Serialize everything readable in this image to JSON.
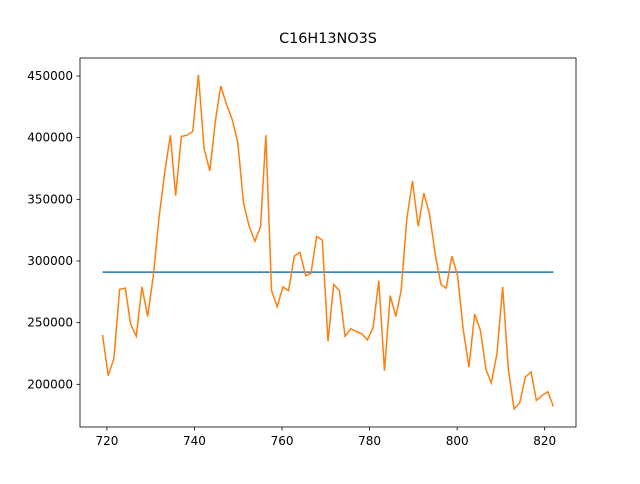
{
  "chart_data": {
    "type": "line",
    "title": "C16H13NO3S",
    "xlim": [
      713.85,
      827.15
    ],
    "xticks": [
      720,
      740,
      760,
      780,
      800,
      820
    ],
    "ylim": [
      165400,
      464600
    ],
    "yticks": [
      200000,
      250000,
      300000,
      350000,
      400000,
      450000
    ],
    "series": [
      {
        "color": "#1f77b4",
        "x": [
          719.0,
          822.0
        ],
        "values": [
          291000,
          291000
        ]
      },
      {
        "color": "#ff7f0e",
        "x": [
          719.0,
          720.3,
          721.6,
          722.9,
          724.2,
          725.4,
          726.7,
          728.0,
          729.3,
          730.6,
          731.9,
          733.2,
          734.5,
          735.7,
          737.0,
          738.3,
          739.6,
          740.9,
          742.2,
          743.5,
          744.8,
          746.0,
          747.3,
          748.6,
          749.9,
          751.2,
          752.5,
          753.8,
          755.1,
          756.3,
          757.6,
          758.9,
          760.2,
          761.5,
          762.8,
          764.1,
          765.4,
          766.6,
          767.9,
          769.2,
          770.5,
          771.8,
          773.1,
          774.4,
          775.7,
          776.9,
          778.2,
          779.5,
          780.8,
          782.1,
          783.4,
          784.7,
          786.0,
          787.2,
          788.5,
          789.8,
          791.1,
          792.4,
          793.7,
          795.0,
          796.3,
          797.5,
          798.8,
          800.1,
          801.4,
          802.7,
          804.0,
          805.3,
          806.6,
          807.8,
          809.1,
          810.4,
          811.7,
          813.0,
          814.3,
          815.6,
          816.9,
          818.1,
          819.4,
          820.7,
          822.0
        ],
        "values": [
          240000,
          207000,
          221000,
          277000,
          278000,
          249000,
          239000,
          279000,
          255000,
          288000,
          335000,
          372000,
          402000,
          353000,
          401000,
          402000,
          405000,
          451000,
          391000,
          373000,
          414000,
          442000,
          427000,
          415000,
          396000,
          347000,
          328000,
          316000,
          328000,
          402000,
          276000,
          263000,
          279000,
          276000,
          304000,
          307000,
          288000,
          290000,
          320000,
          317000,
          235000,
          281000,
          276000,
          239000,
          245000,
          243000,
          241000,
          236000,
          246000,
          284000,
          211000,
          272000,
          255000,
          276000,
          334000,
          365000,
          328000,
          355000,
          338000,
          305000,
          281000,
          278000,
          304000,
          288000,
          244000,
          214000,
          257000,
          244000,
          212000,
          201000,
          225000,
          279000,
          212000,
          180000,
          185000,
          206000,
          210000,
          187000,
          191000,
          194000,
          182000
        ]
      }
    ]
  }
}
